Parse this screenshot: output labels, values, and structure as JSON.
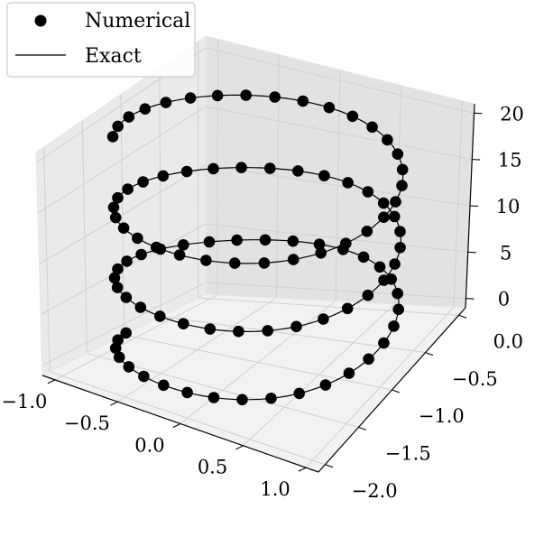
{
  "chart_data": {
    "type": "scatter",
    "projection": "3d",
    "title": "",
    "xlabel": "",
    "ylabel": "",
    "zlabel": "",
    "xlim": [
      -1.1,
      1.1
    ],
    "ylim": [
      -2.1,
      0.1
    ],
    "zlim": [
      -1,
      21
    ],
    "grid": true,
    "legend_position": "top-left",
    "x_ticks": [
      "−1.0",
      "−0.5",
      "0.0",
      "0.5",
      "1.0"
    ],
    "y_ticks": [
      "−2.0",
      "−1.5",
      "−1.0",
      "−0.5",
      "0.0"
    ],
    "z_ticks": [
      "0",
      "5",
      "10",
      "15",
      "20"
    ],
    "x_tick_values": [
      -1.0,
      -0.5,
      0.0,
      0.5,
      1.0
    ],
    "y_tick_values": [
      -2.0,
      -1.5,
      -1.0,
      -0.5,
      0.0
    ],
    "z_tick_values": [
      0,
      5,
      10,
      15,
      20
    ],
    "series": [
      {
        "name": "Numerical",
        "style": "markers",
        "color": "#000000",
        "curve": "helix",
        "center": [
          0.0,
          -1.0
        ],
        "radius": 1.0,
        "t_start": 0.0,
        "t_end": 20.0,
        "point_count": 96,
        "turns": 3.05
      },
      {
        "name": "Exact",
        "style": "line",
        "color": "#000000",
        "curve": "helix",
        "center": [
          0.0,
          -1.0
        ],
        "radius": 1.0,
        "t_start": 0.0,
        "t_end": 20.0,
        "turns": 3.05
      }
    ]
  }
}
